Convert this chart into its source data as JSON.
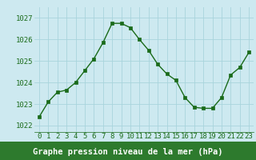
{
  "x": [
    0,
    1,
    2,
    3,
    4,
    5,
    6,
    7,
    8,
    9,
    10,
    11,
    12,
    13,
    14,
    15,
    16,
    17,
    18,
    19,
    20,
    21,
    22,
    23
  ],
  "y": [
    1022.4,
    1023.1,
    1023.55,
    1023.65,
    1024.0,
    1024.55,
    1025.1,
    1025.85,
    1026.75,
    1026.75,
    1026.55,
    1026.0,
    1025.5,
    1024.85,
    1024.4,
    1024.1,
    1023.3,
    1022.85,
    1022.8,
    1022.8,
    1023.3,
    1024.35,
    1024.7,
    1025.4
  ],
  "line_color": "#1a6b1a",
  "marker": "s",
  "marker_size": 2.5,
  "bg_color": "#cde9f0",
  "grid_color": "#a8d4dc",
  "xlabel": "Graphe pression niveau de la mer (hPa)",
  "xlabel_bg": "#2d7a2d",
  "xlabel_color": "#ffffff",
  "ylabel_ticks": [
    1022,
    1023,
    1024,
    1025,
    1026,
    1027
  ],
  "ylim": [
    1021.7,
    1027.5
  ],
  "xlim": [
    -0.5,
    23.5
  ],
  "tick_color": "#1a6b1a",
  "tick_fontsize": 6.5,
  "xlabel_fontsize": 7.5
}
